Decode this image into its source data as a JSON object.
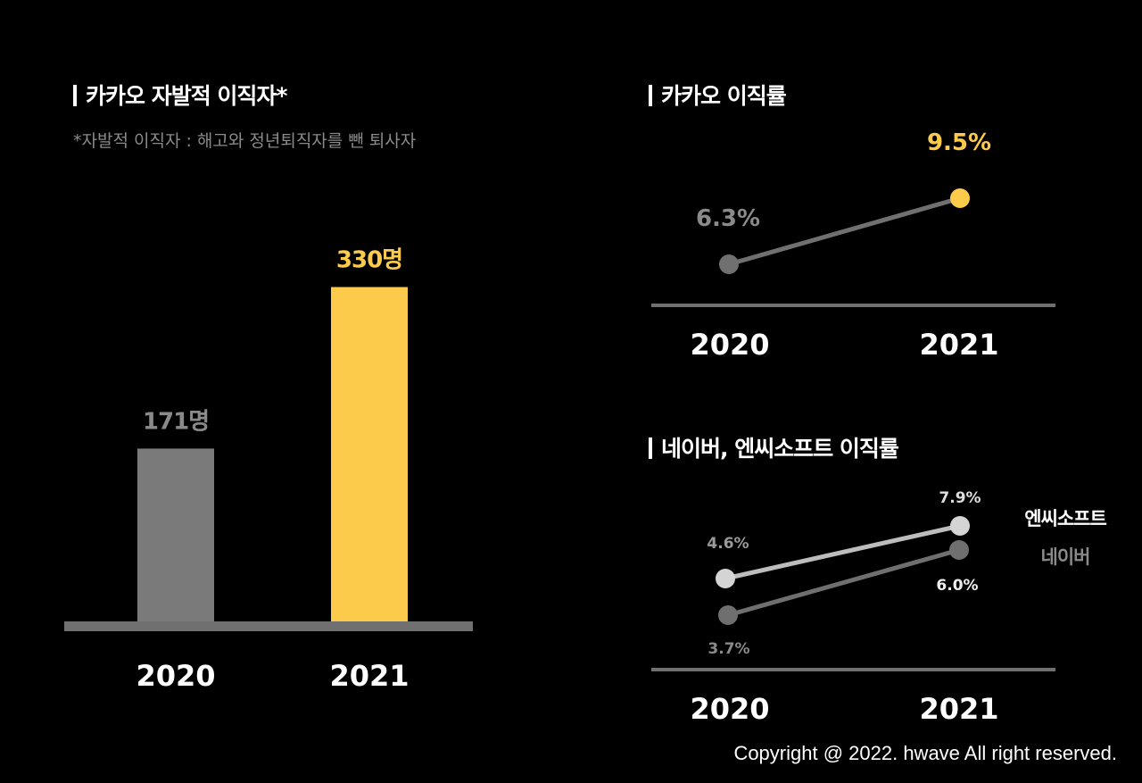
{
  "colors": {
    "background": "#000000",
    "highlight": "#FDCB4C",
    "gray": "#7a7a7a",
    "light": "#cccccc",
    "axis": "#707070",
    "white": "#ffffff"
  },
  "left_panel": {
    "title": "카카오 자발적 이직자*",
    "note": "*자발적 이직자 : 해고와 정년퇴직자를 뺀  퇴사자"
  },
  "right_top": {
    "title": "카카오 이직률"
  },
  "right_bottom": {
    "title": "네이버, 엔씨소프트 이직률"
  },
  "footer": {
    "copyright": "Copyright @ 2022. hwave All right reserved."
  },
  "chart_data": [
    {
      "type": "bar",
      "title": "카카오 자발적 이직자*",
      "categories": [
        "2020",
        "2021"
      ],
      "values": [
        171,
        330
      ],
      "data_labels": [
        "171명",
        "330명"
      ],
      "ylim": [
        0,
        370
      ],
      "bar_colors": [
        "#7a7a7a",
        "#FDCB4C"
      ],
      "label_colors": [
        "#8a8a8a",
        "#FDCB4C"
      ]
    },
    {
      "type": "line",
      "title": "카카오 이직률",
      "categories": [
        "2020",
        "2021"
      ],
      "series": [
        {
          "name": "카카오",
          "values": [
            6.3,
            9.5
          ],
          "data_labels": [
            "6.3%",
            "9.5%"
          ],
          "point_colors": [
            "#707070",
            "#FDCB4C"
          ],
          "label_colors": [
            "#8a8a8a",
            "#FDCB4C"
          ]
        }
      ],
      "ylim": [
        4.8,
        10.0
      ]
    },
    {
      "type": "line",
      "title": "네이버, 엔씨소프트 이직률",
      "categories": [
        "2020",
        "2021"
      ],
      "series": [
        {
          "name": "엔씨소프트",
          "values": [
            4.6,
            7.9
          ],
          "data_labels": [
            "4.6%",
            "7.9%"
          ],
          "line_color": "#bdbdbd",
          "point_color": "#d4d4d4",
          "label_colors": [
            "#9a9a9a",
            "#dddddd"
          ],
          "legend_color": "#ffffff"
        },
        {
          "name": "네이버",
          "values": [
            3.7,
            6.0
          ],
          "data_labels": [
            "3.7%",
            "6.0%"
          ],
          "line_color": "#6f6f6f",
          "point_color": "#6f6f6f",
          "label_colors": [
            "#8a8a8a",
            "#eeeeee"
          ],
          "legend_color": "#8a8a8a"
        }
      ],
      "ylim": [
        2.8,
        8.6
      ]
    }
  ]
}
